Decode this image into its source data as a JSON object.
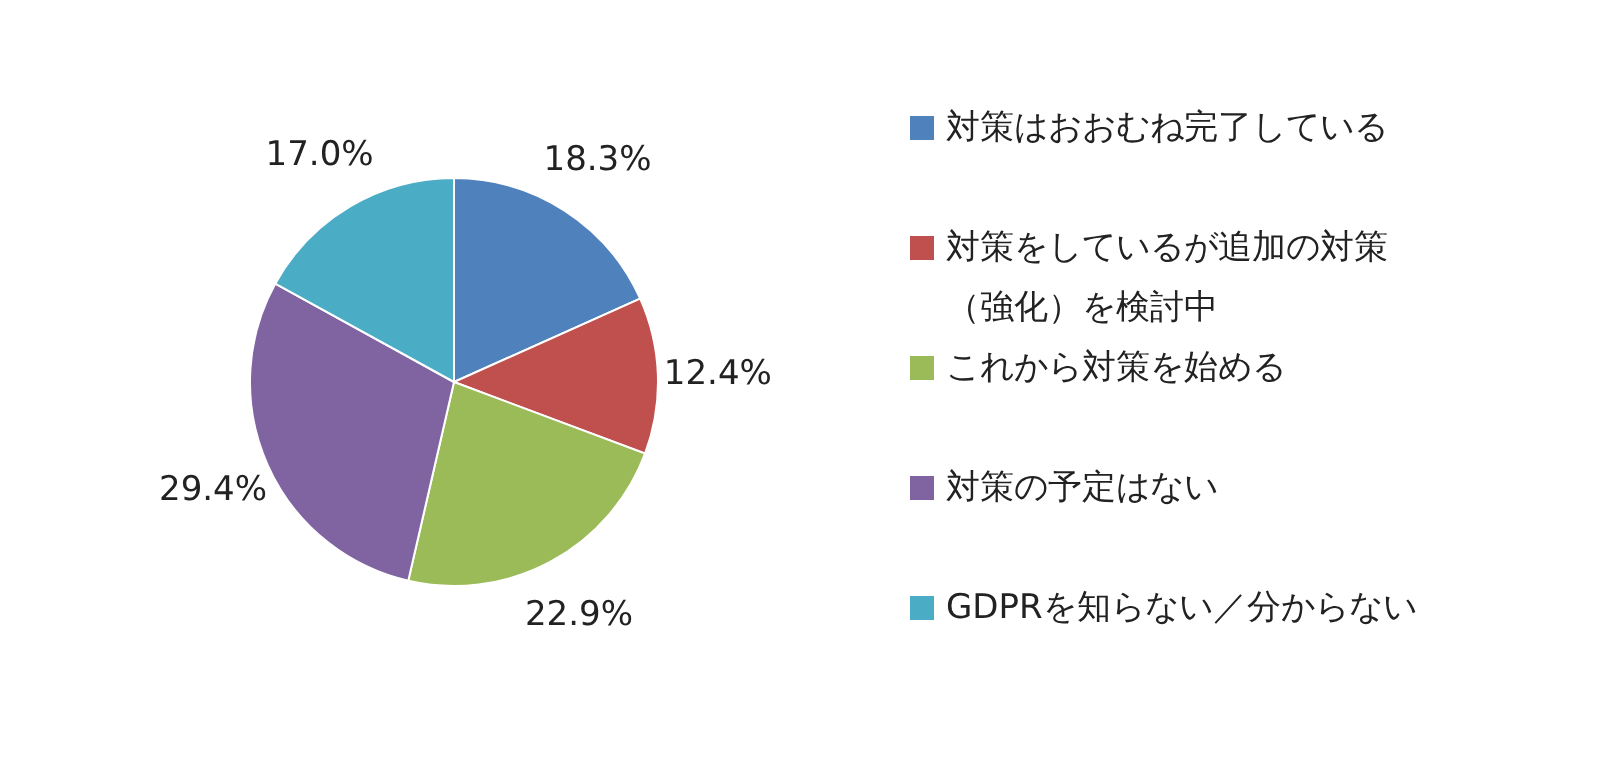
{
  "chart_data": {
    "type": "pie",
    "categories": [
      "対策はおおむね完了している",
      "対策をしているが追加の対策（強化）を検討中",
      "これから対策を始める",
      "対策の予定はない",
      "GDPRを知らない／分からない"
    ],
    "values": [
      18.3,
      12.4,
      22.9,
      29.4,
      17.0
    ],
    "colors": [
      "#4f81bd",
      "#c0504d",
      "#9bbb59",
      "#8064a2",
      "#4bacc6"
    ],
    "value_labels": [
      "18.3%",
      "12.4%",
      "22.9%",
      "29.4%",
      "17.0%"
    ],
    "legend": "right"
  }
}
